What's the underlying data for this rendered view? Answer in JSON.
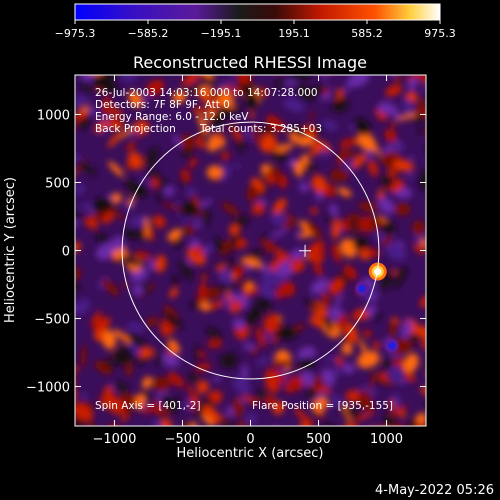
{
  "chart_data": {
    "type": "heatmap",
    "title": "Reconstructed RHESSI Image",
    "xlabel": "Heliocentric X (arcsec)",
    "ylabel": "Heliocentric Y (arcsec)",
    "xlim": [
      -1290,
      1290
    ],
    "ylim": [
      -1290,
      1290
    ],
    "x_ticks": [
      -1000,
      -500,
      0,
      500,
      1000
    ],
    "y_ticks": [
      -1000,
      -500,
      0,
      500,
      1000
    ],
    "x_tick_labels": [
      "−1000",
      "−500",
      "0",
      "500",
      "1000"
    ],
    "y_tick_labels": [
      "−1000",
      "−500",
      "0",
      "500",
      "1000"
    ],
    "colorbar": {
      "range": [
        -975.3,
        975.3
      ],
      "ticks": [
        -975.3,
        -585.2,
        -195.1,
        195.1,
        585.2,
        975.3
      ],
      "tick_labels": [
        "−975.3",
        "−585.2",
        "−195.1",
        "195.1",
        "585.2",
        "975.3"
      ]
    },
    "colors": [
      "#0000ff",
      "#5a1a9a",
      "#1a1a1a",
      "#c01800",
      "#ff5000",
      "#ffd040",
      "#ffffff"
    ],
    "solar_disk": {
      "center": [
        0,
        0
      ],
      "radius": 944
    },
    "marker": {
      "symbol": "plus",
      "x": 401,
      "y": -2
    },
    "sources": [
      {
        "x": 935,
        "y": -155,
        "value": 975.3
      },
      {
        "x": 820,
        "y": -280,
        "value": -700
      },
      {
        "x": 1040,
        "y": -700,
        "value": -650
      }
    ],
    "annotations": {
      "time": "26-Jul-2003 14:03:16.000 to 14:07:28.000",
      "detectors": "Detectors: 7F 8F 9F, Att 0",
      "energy": "Energy Range: 6.0 - 12.0 keV",
      "method": "Back Projection",
      "counts": "Total counts: 3.285+03",
      "spin_axis": "Spin Axis = [401,-2]",
      "flare_position": "Flare Position = [935,-155]"
    },
    "footer": "4-May-2022 05:26"
  }
}
